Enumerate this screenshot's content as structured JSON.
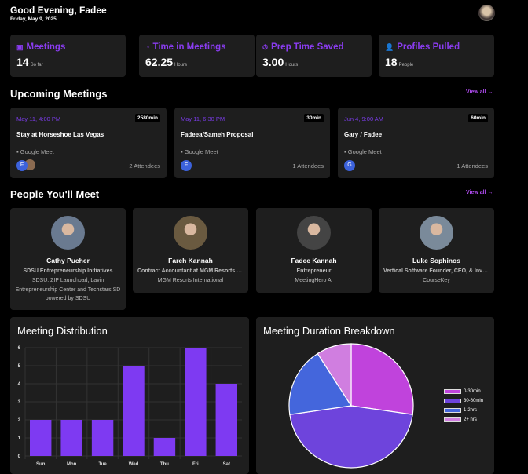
{
  "header": {
    "greeting": "Good Evening, Fadee",
    "date": "Friday, May 9, 2025"
  },
  "stats": [
    {
      "icon": "calendar-icon",
      "title": "Meetings",
      "value": "14",
      "unit": "So far"
    },
    {
      "icon": "clock-icon",
      "title": "Time in Meetings",
      "value": "62.25",
      "unit": "Hours"
    },
    {
      "icon": "stopwatch-icon",
      "title": "Prep Time Saved",
      "value": "3.00",
      "unit": "Hours"
    },
    {
      "icon": "person-icon",
      "title": "Profiles Pulled",
      "value": "18",
      "unit": "People"
    }
  ],
  "upcoming": {
    "title": "Upcoming Meetings",
    "view_all": "View all →",
    "meetings": [
      {
        "when": "May 11, 4:00 PM",
        "duration": "2580min",
        "name": "Stay at Horseshoe Las Vegas",
        "platform": "Google Meet",
        "initial": "F",
        "attendees": "2 Attendees"
      },
      {
        "when": "May 11, 6:30 PM",
        "duration": "30min",
        "name": "Fadeea/Sameh Proposal",
        "platform": "Google Meet",
        "initial": "F",
        "attendees": "1 Attendees"
      },
      {
        "when": "Jun 4, 9:00 AM",
        "duration": "60min",
        "name": "Gary / Fadee",
        "platform": "Google Meet",
        "initial": "G",
        "attendees": "1 Attendees"
      }
    ]
  },
  "people": {
    "title": "People You'll Meet",
    "view_all": "View all →",
    "items": [
      {
        "name": "Cathy Pucher",
        "role": "SDSU Entrepreneurship Initiatives",
        "org": "SDSU: ZIP Launchpad, Lavin Entrepreneurship Center and Techstars SD powered by SDSU"
      },
      {
        "name": "Fareh Kannah",
        "role": "Contract Accountant at MGM Resorts International",
        "org": "MGM Resorts International"
      },
      {
        "name": "Fadee Kannah",
        "role": "Entrepreneur",
        "org": "MeetingHero AI"
      },
      {
        "name": "Luke Sophinos",
        "role": "Vertical Software Founder, CEO, & Investor",
        "org": "CourseKey"
      }
    ]
  },
  "chart_data": [
    {
      "type": "bar",
      "title": "Meeting Distribution",
      "categories": [
        "Sun",
        "Mon",
        "Tue",
        "Wed",
        "Thu",
        "Fri",
        "Sat"
      ],
      "values": [
        2,
        2,
        2,
        5,
        1,
        6,
        4
      ],
      "ylim": [
        0,
        6
      ],
      "yticks": [
        "0",
        "1",
        "2",
        "3",
        "4",
        "5",
        "6"
      ],
      "grid": true,
      "color": "#7e3af2"
    },
    {
      "type": "pie",
      "title": "Meeting Duration Breakdown",
      "categories": [
        "0-30min",
        "30-60min",
        "1-2hrs",
        "2+ hrs"
      ],
      "values": [
        6,
        10,
        4,
        2
      ],
      "colors": [
        "#c043dc",
        "#6e44dc",
        "#4466dc",
        "#d07ee0"
      ],
      "legend": "right"
    }
  ]
}
